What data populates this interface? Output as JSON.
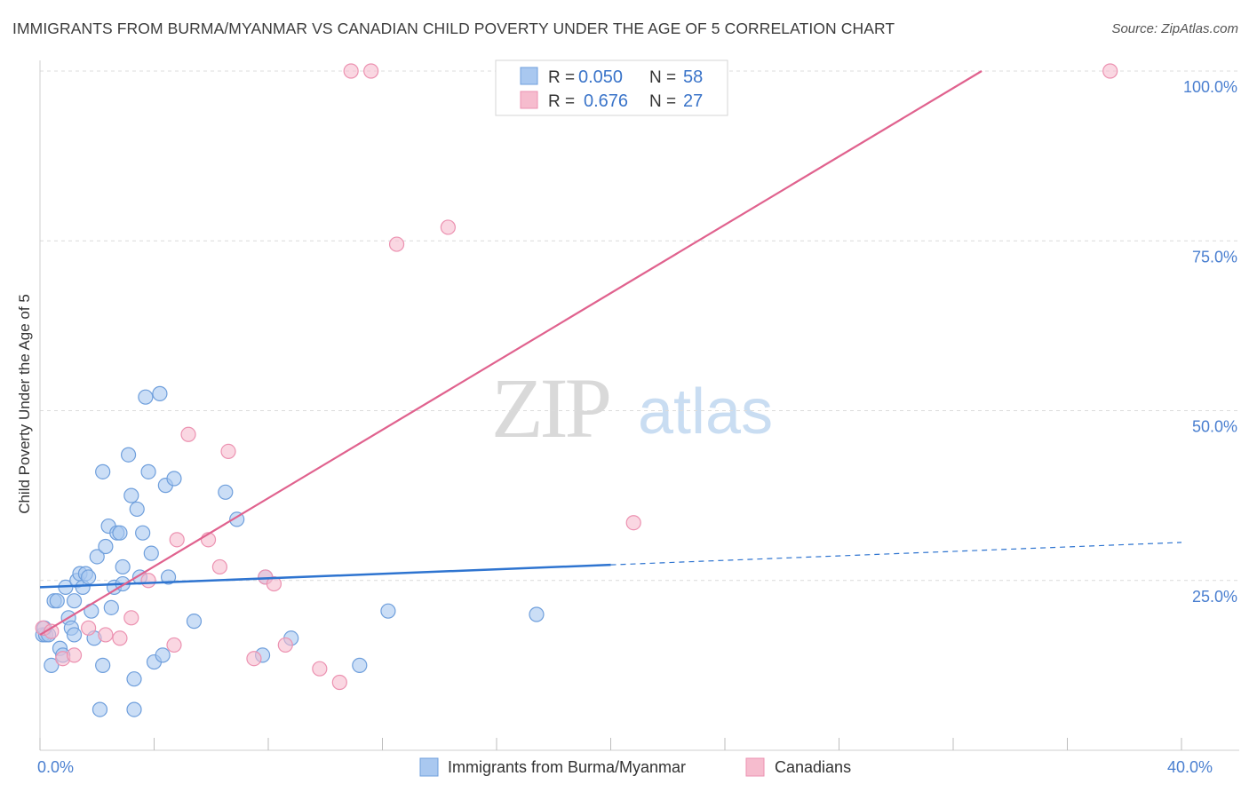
{
  "title": "IMMIGRANTS FROM BURMA/MYANMAR VS CANADIAN CHILD POVERTY UNDER THE AGE OF 5 CORRELATION CHART",
  "source": "Source: ZipAtlas.com",
  "watermark": {
    "part1": "ZIP",
    "part2": "atlas"
  },
  "colors": {
    "blue": "#a9c8f0",
    "blue_stroke": "#6f9fdc",
    "blue_line": "#2e74d0",
    "pink": "#f6bcce",
    "pink_stroke": "#ec92b1",
    "pink_line": "#e0628e",
    "tick": "#4a7fd0"
  },
  "stats": [
    {
      "r_label": "R =",
      "r_value": "0.050",
      "n_label": "N =",
      "n_value": "58"
    },
    {
      "r_label": "R =",
      "r_value": "0.676",
      "n_label": "N =",
      "n_value": "27"
    }
  ],
  "chart_data": {
    "type": "scatter",
    "title": "IMMIGRANTS FROM BURMA/MYANMAR VS CANADIAN CHILD POVERTY UNDER THE AGE OF 5 CORRELATION CHART",
    "xlabel": "",
    "ylabel": "Child Poverty Under the Age of 5",
    "xlim": [
      0,
      40
    ],
    "ylim": [
      0,
      100
    ],
    "x_tick_labels": [
      {
        "value": 0,
        "label": "0.0%"
      },
      {
        "value": 40,
        "label": "40.0%"
      }
    ],
    "x_minor_ticks": [
      4,
      8,
      12,
      16,
      20,
      24,
      28,
      32,
      36
    ],
    "y_ticks": [
      {
        "value": 25,
        "label": "25.0%"
      },
      {
        "value": 50,
        "label": "50.0%"
      },
      {
        "value": 75,
        "label": "75.0%"
      },
      {
        "value": 100,
        "label": "100.0%"
      }
    ],
    "legend": {
      "position": "bottom-center",
      "entries": [
        "Immigrants from Burma/Myanmar",
        "Canadians"
      ]
    },
    "series": [
      {
        "name": "Immigrants from Burma/Myanmar",
        "r": 0.05,
        "n": 58,
        "trend": {
          "x0": 0,
          "y0": 24.0,
          "x1": 20,
          "y1": 27.3,
          "dash_to_x": 40,
          "dash_to_y": 30.6
        },
        "points": [
          [
            0.1,
            17.0
          ],
          [
            0.2,
            17.0
          ],
          [
            0.3,
            17.0
          ],
          [
            0.4,
            12.5
          ],
          [
            0.5,
            22.0
          ],
          [
            0.6,
            22.0
          ],
          [
            0.7,
            15.0
          ],
          [
            0.8,
            14.0
          ],
          [
            0.9,
            24.0
          ],
          [
            1.0,
            19.5
          ],
          [
            1.1,
            18.0
          ],
          [
            1.2,
            22.0
          ],
          [
            1.2,
            17.0
          ],
          [
            1.3,
            25.0
          ],
          [
            1.4,
            26.0
          ],
          [
            1.5,
            24.0
          ],
          [
            1.6,
            26.0
          ],
          [
            1.7,
            25.5
          ],
          [
            1.8,
            20.5
          ],
          [
            1.9,
            16.5
          ],
          [
            2.0,
            28.5
          ],
          [
            2.1,
            6.0
          ],
          [
            2.2,
            12.5
          ],
          [
            2.2,
            41.0
          ],
          [
            2.3,
            30.0
          ],
          [
            2.4,
            33.0
          ],
          [
            2.5,
            21.0
          ],
          [
            2.6,
            24.0
          ],
          [
            2.7,
            32.0
          ],
          [
            2.8,
            32.0
          ],
          [
            2.9,
            24.5
          ],
          [
            2.9,
            27.0
          ],
          [
            3.1,
            43.5
          ],
          [
            3.2,
            37.5
          ],
          [
            3.3,
            10.5
          ],
          [
            3.3,
            6.0
          ],
          [
            3.4,
            35.5
          ],
          [
            3.5,
            25.5
          ],
          [
            3.6,
            32.0
          ],
          [
            3.7,
            52.0
          ],
          [
            3.8,
            41.0
          ],
          [
            3.9,
            29.0
          ],
          [
            4.0,
            13.0
          ],
          [
            4.2,
            52.5
          ],
          [
            4.3,
            14.0
          ],
          [
            4.4,
            39.0
          ],
          [
            4.5,
            25.5
          ],
          [
            4.7,
            40.0
          ],
          [
            5.4,
            19.0
          ],
          [
            6.5,
            38.0
          ],
          [
            6.9,
            34.0
          ],
          [
            7.8,
            14.0
          ],
          [
            7.9,
            25.5
          ],
          [
            8.8,
            16.5
          ],
          [
            11.2,
            12.5
          ],
          [
            12.2,
            20.5
          ],
          [
            17.4,
            20.0
          ],
          [
            0.15,
            18.0
          ]
        ]
      },
      {
        "name": "Canadians",
        "r": 0.676,
        "n": 27,
        "trend": {
          "x0": 0,
          "y0": 17.0,
          "x1": 33,
          "y1": 100.0
        },
        "points": [
          [
            0.1,
            18.0
          ],
          [
            0.4,
            17.5
          ],
          [
            0.8,
            13.5
          ],
          [
            1.2,
            14.0
          ],
          [
            1.7,
            18.0
          ],
          [
            2.3,
            17.0
          ],
          [
            2.8,
            16.5
          ],
          [
            3.2,
            19.5
          ],
          [
            3.8,
            25.0
          ],
          [
            4.7,
            15.5
          ],
          [
            4.8,
            31.0
          ],
          [
            5.2,
            46.5
          ],
          [
            5.9,
            31.0
          ],
          [
            6.3,
            27.0
          ],
          [
            6.6,
            44.0
          ],
          [
            7.5,
            13.5
          ],
          [
            7.9,
            25.5
          ],
          [
            8.2,
            24.5
          ],
          [
            8.6,
            15.5
          ],
          [
            9.8,
            12.0
          ],
          [
            10.5,
            10.0
          ],
          [
            10.9,
            100.0
          ],
          [
            11.6,
            100.0
          ],
          [
            12.5,
            74.5
          ],
          [
            14.3,
            77.0
          ],
          [
            20.8,
            33.5
          ],
          [
            37.5,
            100.0
          ]
        ]
      }
    ]
  }
}
